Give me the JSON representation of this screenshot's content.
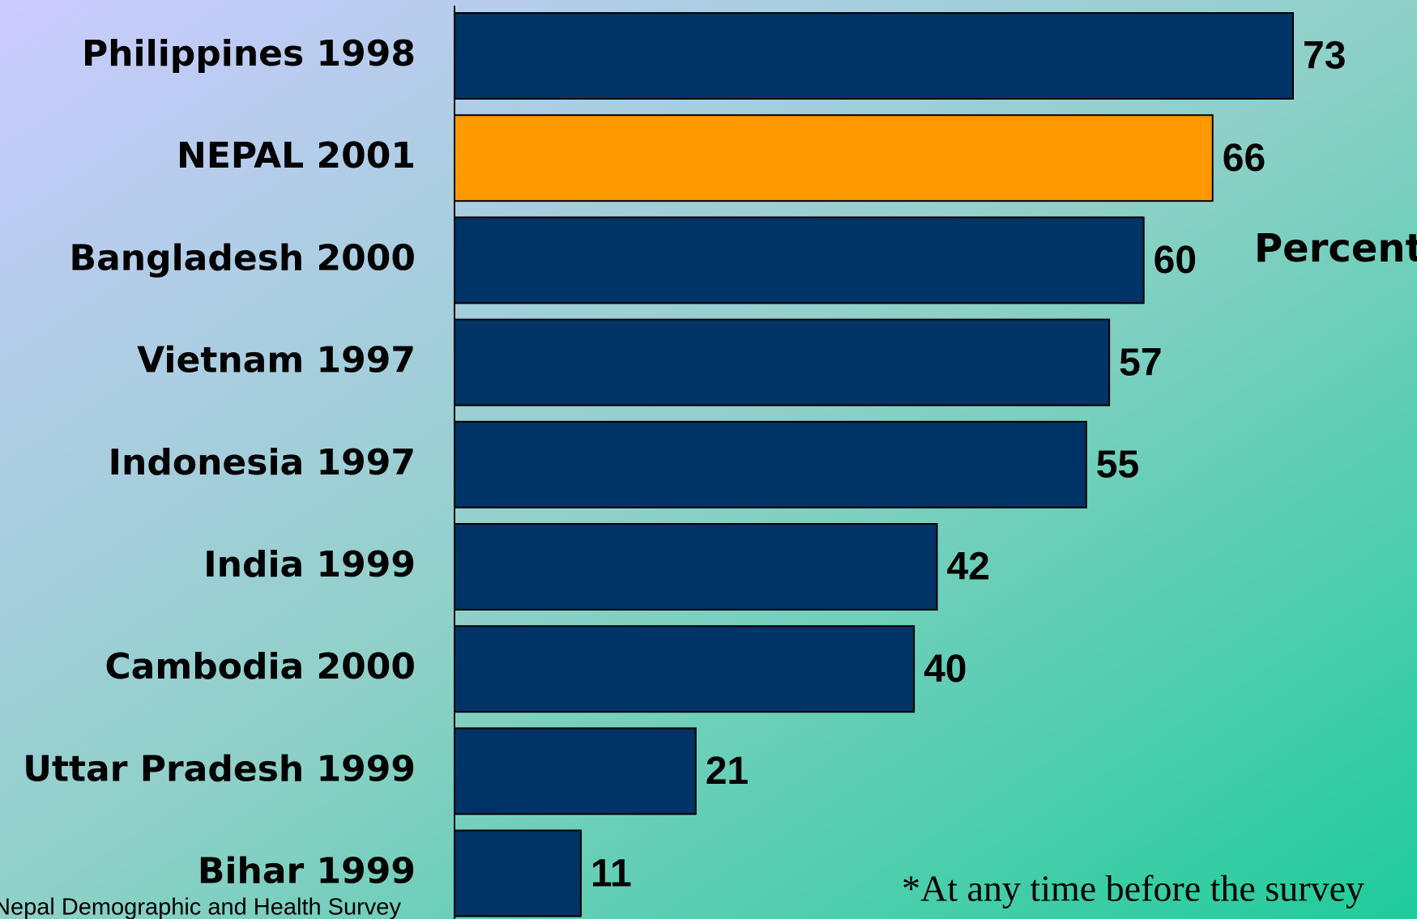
{
  "chart_data": {
    "type": "hbar",
    "categories": [
      "Philippines 1998",
      "NEPAL 2001",
      "Bangladesh 2000",
      "Vietnam 1997",
      "Indonesia 1997",
      "India 1999",
      "Cambodia 2000",
      "Uttar Pradesh 1999",
      "Bihar 1999"
    ],
    "values": [
      73,
      66,
      60,
      57,
      55,
      42,
      40,
      21,
      11
    ],
    "colors": [
      "#003366",
      "#ff9900",
      "#003366",
      "#003366",
      "#003366",
      "#003366",
      "#003366",
      "#003366",
      "#003366"
    ],
    "unit_label": "Percent",
    "footnote": "*At any time before the survey",
    "source": "Nepal Demographic and Health Survey"
  }
}
